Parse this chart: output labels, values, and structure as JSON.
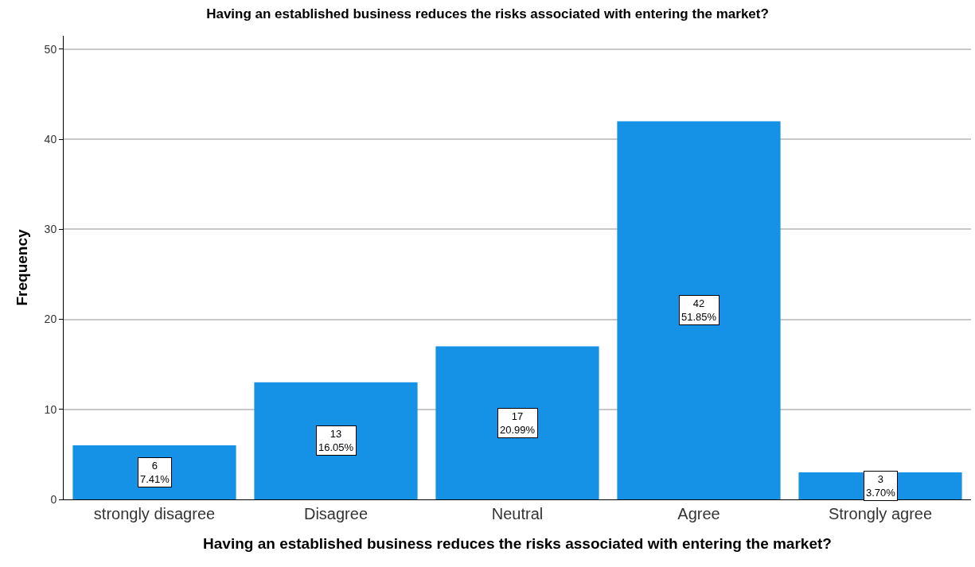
{
  "chart_data": {
    "type": "bar",
    "title": "Having an established business reduces the risks associated with entering the market?",
    "xlabel": "Having an established business reduces the risks associated with entering the market?",
    "ylabel": "Frequency",
    "categories": [
      "strongly disagree",
      "Disagree",
      "Neutral",
      "Agree",
      "Strongly agree"
    ],
    "values": [
      6,
      13,
      17,
      42,
      3
    ],
    "value_labels": [
      "6\n7.41%",
      "13\n16.05%",
      "17\n20.99%",
      "42\n51.85%",
      "3\n3.70%"
    ],
    "color": "#1591e6",
    "ylim": [
      0,
      51.5
    ],
    "yticks": [
      0,
      10,
      20,
      30,
      40,
      50
    ],
    "grid": "y"
  }
}
